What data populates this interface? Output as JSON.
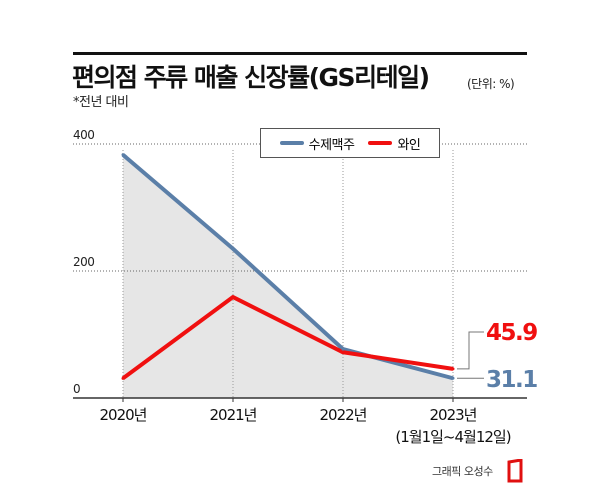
{
  "title": "편의점 주류 매출 신장률(GS리테일)",
  "unit": "(단위: %)",
  "subtitle": "*전년 대비",
  "credit": "그래픽 오성수",
  "colors": {
    "craft_beer": "#5b7fa8",
    "wine": "#f01010",
    "area": "#e6e6e6"
  },
  "chart_data": {
    "type": "line",
    "categories": [
      "2020년",
      "2021년",
      "2022년",
      "2023년"
    ],
    "category_notes": [
      "",
      "",
      "",
      "(1월1일~4월12일)"
    ],
    "ylim": [
      0,
      400
    ],
    "yticks": [
      0,
      200,
      400
    ],
    "grid": true,
    "legend_position": "top",
    "series": [
      {
        "name": "수제맥주",
        "values": [
          383,
          235,
          77,
          31.1
        ],
        "color": "#5b7fa8",
        "fill_area": true
      },
      {
        "name": "와인",
        "values": [
          31,
          159,
          72,
          45.9
        ],
        "color": "#f01010"
      }
    ],
    "annotations": [
      {
        "series": "와인",
        "category": "2023년",
        "text": "45.9"
      },
      {
        "series": "수제맥주",
        "category": "2023년",
        "text": "31.1"
      }
    ]
  }
}
